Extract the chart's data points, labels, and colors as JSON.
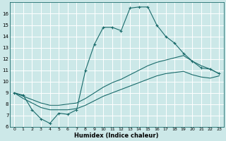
{
  "xlabel": "Humidex (Indice chaleur)",
  "bg_color": "#cce8e8",
  "grid_color": "#b0d0d0",
  "line_color": "#1a6b6b",
  "xlim": [
    -0.5,
    23.5
  ],
  "ylim": [
    6,
    17
  ],
  "yticks": [
    6,
    7,
    8,
    9,
    10,
    11,
    12,
    13,
    14,
    15,
    16
  ],
  "xticks": [
    0,
    1,
    2,
    3,
    4,
    5,
    6,
    7,
    8,
    9,
    10,
    11,
    12,
    13,
    14,
    15,
    16,
    17,
    18,
    19,
    20,
    21,
    22,
    23
  ],
  "series1_x": [
    0,
    1,
    2,
    3,
    4,
    5,
    6,
    7,
    8,
    9,
    10,
    11,
    12,
    13,
    14,
    15,
    16,
    17,
    18,
    19,
    20,
    21,
    22,
    23
  ],
  "series1_y": [
    9.0,
    8.8,
    7.5,
    6.7,
    6.3,
    7.2,
    7.1,
    7.5,
    11.0,
    13.3,
    14.8,
    14.8,
    14.5,
    16.5,
    16.6,
    16.6,
    15.0,
    14.0,
    13.4,
    12.5,
    11.8,
    11.2,
    11.1,
    10.7
  ],
  "series2_x": [
    0,
    1,
    2,
    3,
    4,
    5,
    6,
    7,
    8,
    9,
    10,
    11,
    12,
    13,
    14,
    15,
    16,
    17,
    18,
    19,
    20,
    21,
    22,
    23
  ],
  "series2_y": [
    9.0,
    8.7,
    8.4,
    8.1,
    7.9,
    7.9,
    8.0,
    8.1,
    8.5,
    9.0,
    9.5,
    9.9,
    10.2,
    10.6,
    11.0,
    11.4,
    11.7,
    11.9,
    12.1,
    12.3,
    11.8,
    11.4,
    11.1,
    10.7
  ],
  "series3_x": [
    0,
    1,
    2,
    3,
    4,
    5,
    6,
    7,
    8,
    9,
    10,
    11,
    12,
    13,
    14,
    15,
    16,
    17,
    18,
    19,
    20,
    21,
    22,
    23
  ],
  "series3_y": [
    9.0,
    8.5,
    8.1,
    7.7,
    7.5,
    7.5,
    7.5,
    7.6,
    7.9,
    8.3,
    8.7,
    9.0,
    9.3,
    9.6,
    9.9,
    10.2,
    10.5,
    10.7,
    10.8,
    10.9,
    10.6,
    10.4,
    10.3,
    10.5
  ]
}
